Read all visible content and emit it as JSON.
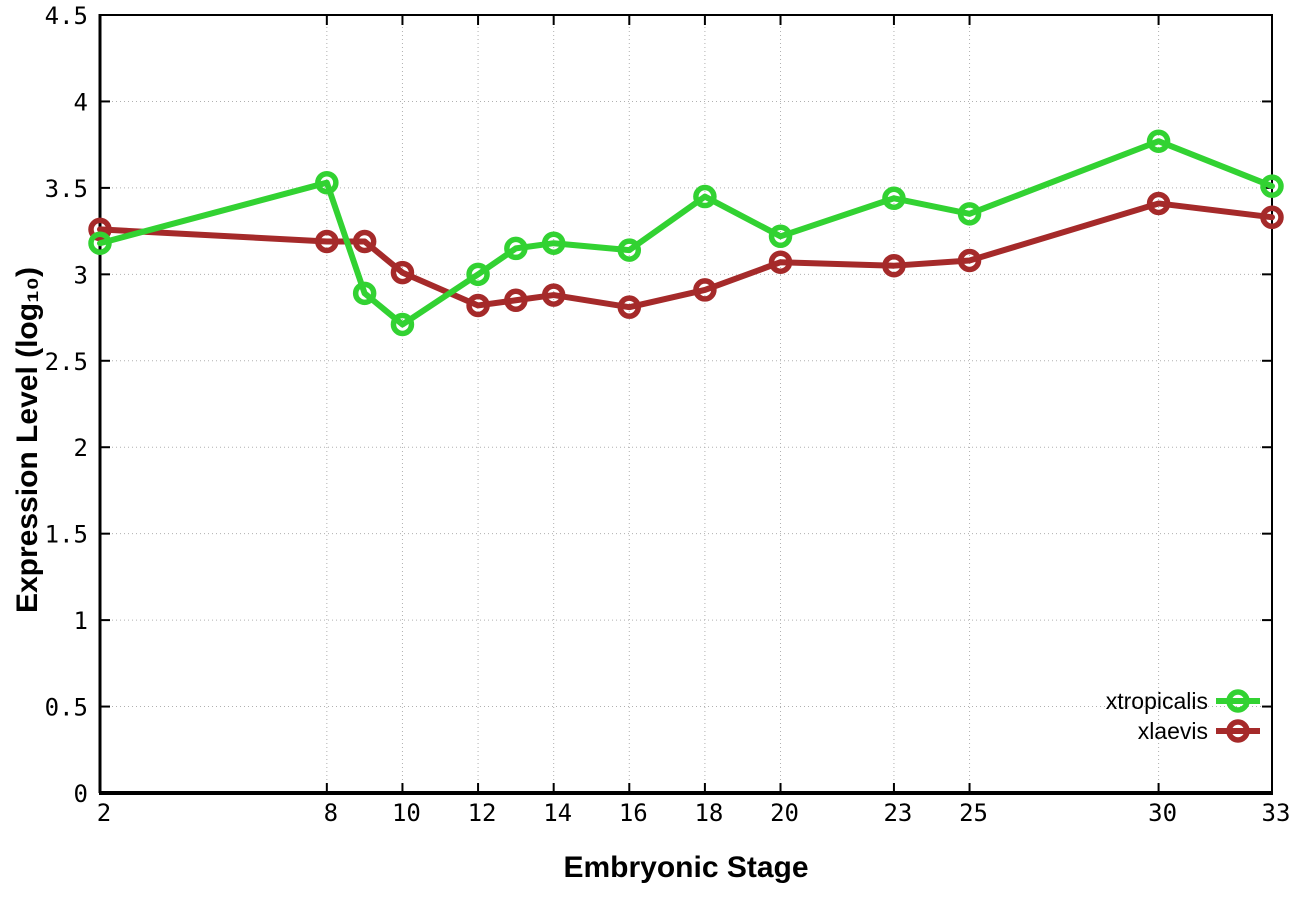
{
  "chart_data": {
    "type": "line",
    "title": "",
    "xlabel": "Embryonic Stage",
    "ylabel": "Expression Level (log₁₀)",
    "xlim": [
      2,
      33
    ],
    "ylim": [
      0,
      4.5
    ],
    "x_ticks": [
      2,
      8,
      10,
      12,
      14,
      16,
      18,
      20,
      23,
      25,
      30,
      33
    ],
    "y_ticks": [
      0,
      0.5,
      1,
      1.5,
      2,
      2.5,
      3,
      3.5,
      4,
      4.5
    ],
    "grid": true,
    "legend_position": "bottom-right",
    "marker": "open-circle",
    "x": [
      2,
      8,
      9,
      10,
      12,
      13,
      14,
      16,
      18,
      20,
      23,
      25,
      30,
      33
    ],
    "series": [
      {
        "name": "xtropicalis",
        "color": "#32d232",
        "values": [
          3.18,
          3.53,
          2.89,
          2.71,
          3.0,
          3.15,
          3.18,
          3.14,
          3.45,
          3.22,
          3.44,
          3.35,
          3.77,
          3.51
        ]
      },
      {
        "name": "xlaevis",
        "color": "#a52a2a",
        "values": [
          3.26,
          3.19,
          3.19,
          3.01,
          2.82,
          2.85,
          2.88,
          2.81,
          2.91,
          3.07,
          3.05,
          3.08,
          3.41,
          3.33
        ]
      }
    ]
  }
}
